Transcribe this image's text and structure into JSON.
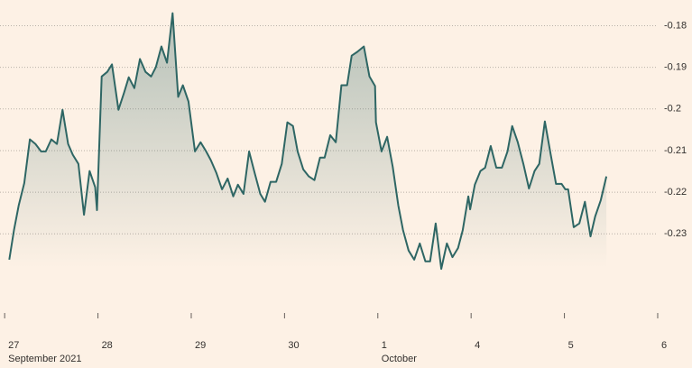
{
  "chart_data": {
    "type": "line",
    "color": "#2e6664",
    "x": [
      0.05,
      0.1,
      0.15,
      0.21,
      0.27,
      0.33,
      0.39,
      0.44,
      0.5,
      0.56,
      0.62,
      0.68,
      0.73,
      0.79,
      0.85,
      0.91,
      0.97,
      0.99,
      1.04,
      1.1,
      1.15,
      1.22,
      1.28,
      1.33,
      1.39,
      1.45,
      1.51,
      1.57,
      1.62,
      1.68,
      1.74,
      1.8,
      1.86,
      1.91,
      1.97,
      2.04,
      2.1,
      2.16,
      2.21,
      2.27,
      2.33,
      2.39,
      2.45,
      2.5,
      2.56,
      2.62,
      2.68,
      2.74,
      2.79,
      2.85,
      2.91,
      2.97,
      3.03,
      3.09,
      3.14,
      3.2,
      3.26,
      3.32,
      3.38,
      3.43,
      3.49,
      3.55,
      3.61,
      3.67,
      3.72,
      3.78,
      3.85,
      3.91,
      3.97,
      3.98,
      4.04,
      4.1,
      4.16,
      4.22,
      4.27,
      4.33,
      4.39,
      4.45,
      4.51,
      4.56,
      4.62,
      4.68,
      4.74,
      4.8,
      4.86,
      4.91,
      4.97,
      4.99,
      5.04,
      5.1,
      5.15,
      5.21,
      5.27,
      5.33,
      5.39,
      5.44,
      5.5,
      5.56,
      5.62,
      5.68,
      5.73,
      5.79,
      5.85,
      5.91,
      5.97,
      6.01,
      6.04,
      6.1,
      6.16,
      6.22,
      6.28,
      6.33,
      6.39,
      6.45
    ],
    "values": [
      -0.2362,
      -0.2291,
      -0.2232,
      -0.2178,
      -0.2073,
      -0.2084,
      -0.2102,
      -0.2102,
      -0.2073,
      -0.2084,
      -0.2002,
      -0.2084,
      -0.211,
      -0.2132,
      -0.2254,
      -0.2149,
      -0.2188,
      -0.2243,
      -0.1922,
      -0.1911,
      -0.1893,
      -0.2002,
      -0.1961,
      -0.1924,
      -0.195,
      -0.188,
      -0.1911,
      -0.1922,
      -0.19,
      -0.185,
      -0.1889,
      -0.177,
      -0.1971,
      -0.1943,
      -0.1982,
      -0.2102,
      -0.208,
      -0.2102,
      -0.2123,
      -0.2154,
      -0.2193,
      -0.2167,
      -0.221,
      -0.2182,
      -0.2204,
      -0.2102,
      -0.2154,
      -0.2204,
      -0.2223,
      -0.2175,
      -0.2175,
      -0.2132,
      -0.2032,
      -0.2041,
      -0.2102,
      -0.2145,
      -0.2162,
      -0.2171,
      -0.2117,
      -0.2117,
      -0.2063,
      -0.208,
      -0.1943,
      -0.1943,
      -0.1872,
      -0.1863,
      -0.185,
      -0.1922,
      -0.1945,
      -0.2032,
      -0.2102,
      -0.2067,
      -0.2139,
      -0.2232,
      -0.2291,
      -0.234,
      -0.2362,
      -0.2323,
      -0.2366,
      -0.2366,
      -0.2275,
      -0.2384,
      -0.2323,
      -0.2356,
      -0.2334,
      -0.2291,
      -0.221,
      -0.2241,
      -0.2182,
      -0.2149,
      -0.2141,
      -0.2089,
      -0.2141,
      -0.2141,
      -0.2102,
      -0.2041,
      -0.208,
      -0.2132,
      -0.2191,
      -0.2149,
      -0.2132,
      -0.203,
      -0.2106,
      -0.218,
      -0.218,
      -0.2193,
      -0.2193,
      -0.2284,
      -0.2275,
      -0.2223,
      -0.2306,
      -0.2258,
      -0.2219,
      -0.2162
    ],
    "xlim": [
      -0.05,
      7.3
    ],
    "ylim": [
      -0.249,
      -0.176
    ],
    "xticks": [
      {
        "value": 0,
        "label": "27"
      },
      {
        "value": 1,
        "label": "28"
      },
      {
        "value": 2,
        "label": "29"
      },
      {
        "value": 3,
        "label": "30"
      },
      {
        "value": 4,
        "label": "1"
      },
      {
        "value": 5,
        "label": "4"
      },
      {
        "value": 6,
        "label": "5"
      },
      {
        "value": 7,
        "label": "6"
      }
    ],
    "x_period_labels": [
      {
        "value": 0,
        "label": "September 2021"
      },
      {
        "value": 4,
        "label": "October"
      }
    ],
    "yticks": [
      -0.18,
      -0.19,
      -0.2,
      -0.21,
      -0.22,
      -0.23
    ],
    "grid": true
  }
}
